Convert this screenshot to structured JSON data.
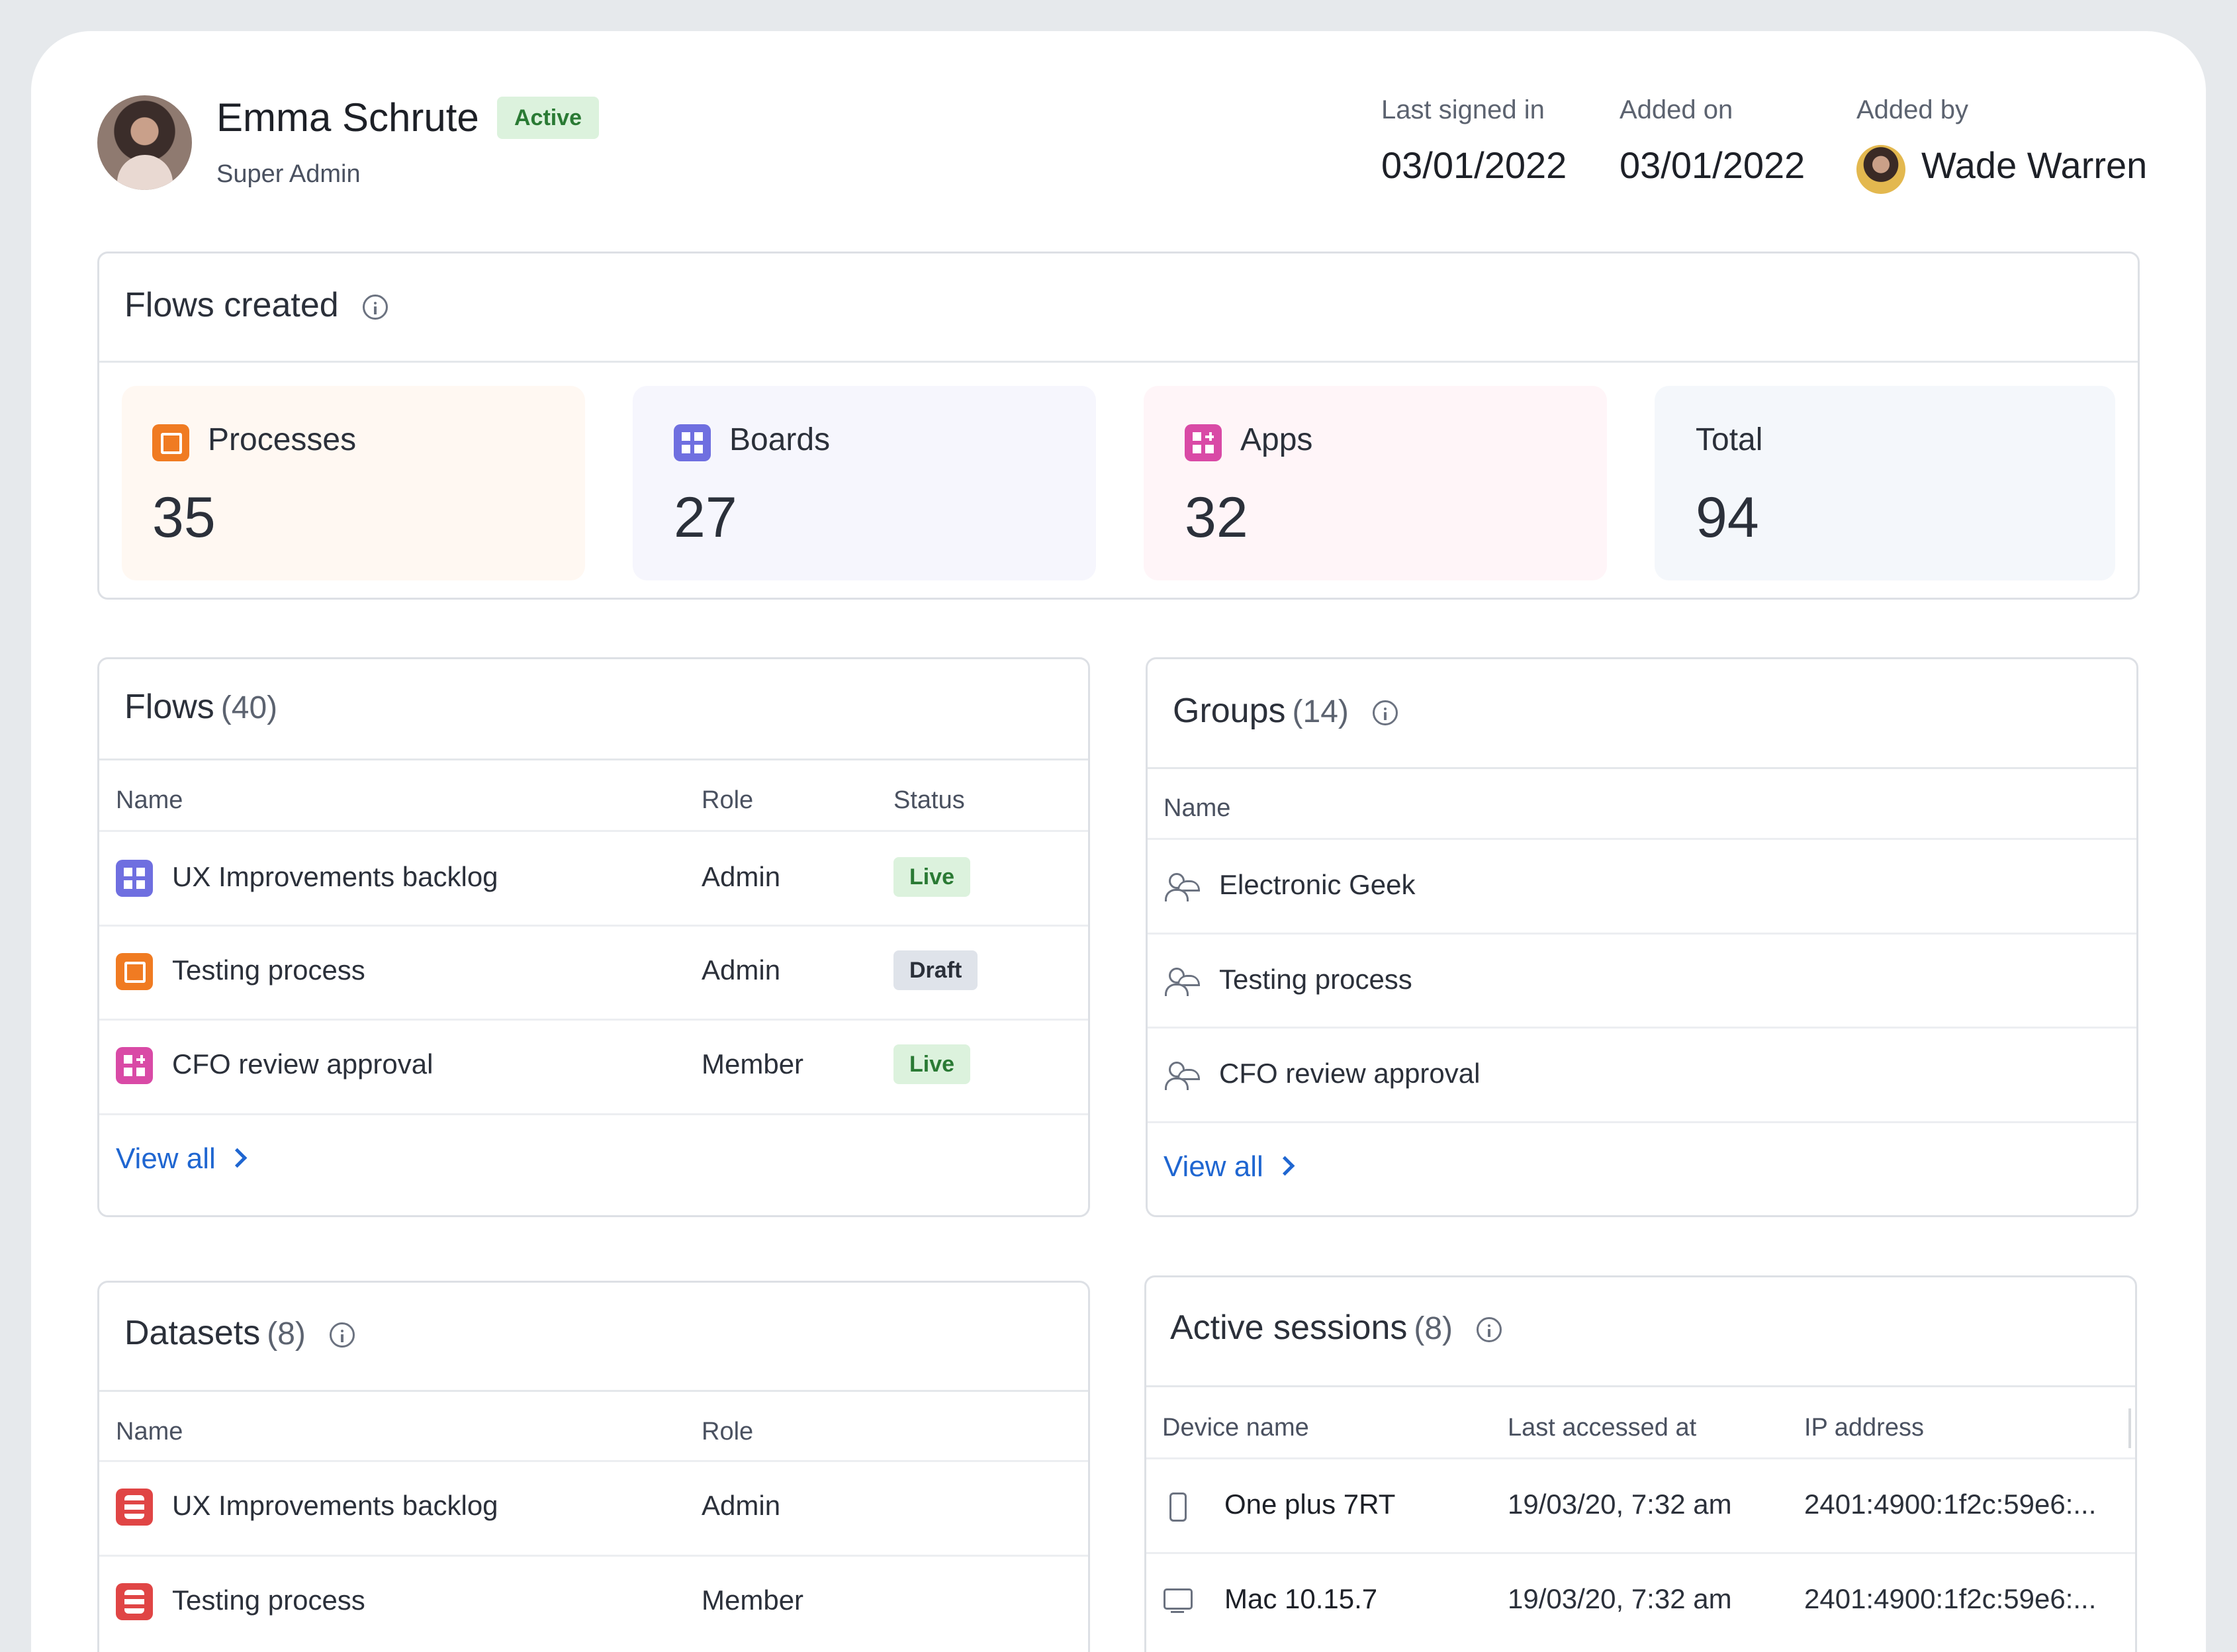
{
  "user": {
    "name": "Emma Schrute",
    "status": "Active",
    "role": "Super Admin"
  },
  "meta": {
    "last_signed_in_label": "Last signed in",
    "last_signed_in": "03/01/2022",
    "added_on_label": "Added on",
    "added_on": "03/01/2022",
    "added_by_label": "Added by",
    "added_by": "Wade Warren"
  },
  "flows_created": {
    "title": "Flows created",
    "tiles": [
      {
        "label": "Processes",
        "value": "35",
        "icon": "process-icon"
      },
      {
        "label": "Boards",
        "value": "27",
        "icon": "board-icon"
      },
      {
        "label": "Apps",
        "value": "32",
        "icon": "app-icon"
      },
      {
        "label": "Total",
        "value": "94"
      }
    ]
  },
  "flows": {
    "title": "Flows",
    "count": "(40)",
    "columns": [
      "Name",
      "Role",
      "Status"
    ],
    "rows": [
      {
        "name": "UX Improvements backlog",
        "role": "Admin",
        "status": "Live",
        "icon": "board-icon"
      },
      {
        "name": "Testing process",
        "role": "Admin",
        "status": "Draft",
        "icon": "process-icon"
      },
      {
        "name": "CFO review approval",
        "role": "Member",
        "status": "Live",
        "icon": "app-icon"
      }
    ],
    "view_all": "View all"
  },
  "groups": {
    "title": "Groups",
    "count": "(14)",
    "columns": [
      "Name"
    ],
    "rows": [
      {
        "name": "Electronic Geek"
      },
      {
        "name": "Testing process"
      },
      {
        "name": "CFO review approval"
      }
    ],
    "view_all": "View all"
  },
  "datasets": {
    "title": "Datasets",
    "count": "(8)",
    "columns": [
      "Name",
      "Role"
    ],
    "rows": [
      {
        "name": "UX Improvements backlog",
        "role": "Admin"
      },
      {
        "name": "Testing process",
        "role": "Member"
      }
    ]
  },
  "sessions": {
    "title": "Active sessions",
    "count": "(8)",
    "columns": [
      "Device name",
      "Last accessed at",
      "IP address"
    ],
    "rows": [
      {
        "device": "One plus 7RT",
        "accessed": "19/03/20, 7:32 am",
        "ip": "2401:4900:1f2c:59e6:...",
        "icon": "phone-icon"
      },
      {
        "device": "Mac 10.15.7",
        "accessed": "19/03/20, 7:32 am",
        "ip": "2401:4900:1f2c:59e6:...",
        "icon": "monitor-icon"
      }
    ]
  },
  "colors": {
    "accent": "#1f66d1",
    "live_bg": "#dcf2dd",
    "draft_bg": "#dfe3ea",
    "process": "#f07b22",
    "board": "#6f6fe0",
    "app": "#d94aa6",
    "dataset": "#e04545"
  }
}
